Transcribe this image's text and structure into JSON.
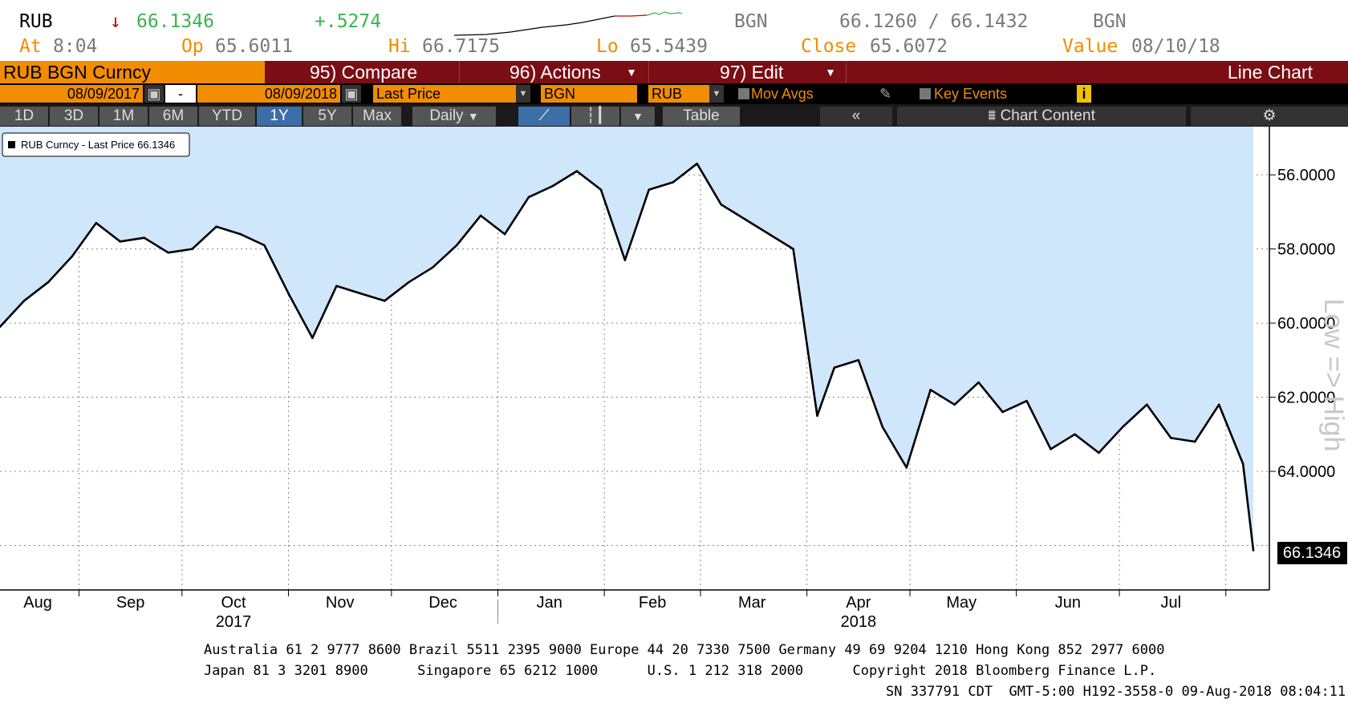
{
  "header": {
    "ticker": "RUB",
    "arrow": "↓",
    "last": "66.1346",
    "change": "+.5274",
    "src1": "BGN",
    "bid_ask": "66.1260 / 66.1432",
    "src2": "BGN",
    "at_label": "At",
    "at_value": "8:04",
    "op_label": "Op",
    "op_value": "65.6011",
    "hi_label": "Hi",
    "hi_value": "66.7175",
    "lo_label": "Lo",
    "lo_value": "65.5439",
    "close_label": "Close",
    "close_value": "65.6072",
    "value_label": "Value",
    "value_value": "08/10/18",
    "spark_colors": {
      "line": "#000000",
      "down": "#cc0000",
      "up": "#39b54a"
    }
  },
  "toolbar": {
    "security": "RUB BGN Curncy",
    "compare": "95) Compare",
    "actions": "96) Actions",
    "edit": "97) Edit",
    "chart_type": "Line Chart"
  },
  "fields": {
    "start_date": "08/09/2017",
    "dash": "-",
    "end_date": "08/09/2018",
    "price_field": "Last Price",
    "source": "BGN",
    "currency": "RUB",
    "mov_avgs": "Mov Avgs",
    "key_events": "Key Events"
  },
  "periods": {
    "items": [
      "1D",
      "3D",
      "1M",
      "6M",
      "YTD",
      "1Y",
      "5Y",
      "Max"
    ],
    "active": "1Y",
    "frequency": "Daily",
    "table": "Table",
    "chart_content": "Chart Content",
    "collapse": "«"
  },
  "footer": {
    "line1": "Australia 61 2 9777 8600 Brazil 5511 2395 9000 Europe 44 20 7330 7500 Germany 49 69 9204 1210 Hong Kong 852 2977 6000",
    "line2": "Japan 81 3 3201 8900      Singapore 65 6212 1000      U.S. 1 212 318 2000      Copyright 2018 Bloomberg Finance L.P.",
    "line3": "SN 337791 CDT  GMT-5:00 H192-3558-0 09-Aug-2018 08:04:11"
  },
  "colors": {
    "fill": "#cfe6fb",
    "brand_bar": "#7a0e14",
    "orange": "#f28c00",
    "active_tab": "#3c6ea8"
  },
  "chart_data": {
    "type": "area",
    "legend": "RUB Curncy - Last Price 66.1346",
    "legend_position": "top-left",
    "last_value_label": "66.1346",
    "axis_caption": "Low => High",
    "y_inverted": true,
    "ylim": [
      54.7,
      67.2
    ],
    "yticks": [
      56,
      58,
      60,
      62,
      64
    ],
    "ytick_labels": [
      "56.0000",
      "58.0000",
      "60.0000",
      "62.0000",
      "64.0000"
    ],
    "grid": true,
    "x_months": [
      "Aug",
      "Sep",
      "Oct",
      "Nov",
      "Dec",
      "Jan",
      "Feb",
      "Mar",
      "Apr",
      "May",
      "Jun",
      "Jul"
    ],
    "x_years": [
      "2017",
      "2018"
    ],
    "x": [
      "2017-08-09",
      "2017-08-16",
      "2017-08-23",
      "2017-08-30",
      "2017-09-06",
      "2017-09-13",
      "2017-09-20",
      "2017-09-27",
      "2017-10-04",
      "2017-10-11",
      "2017-10-18",
      "2017-10-25",
      "2017-11-01",
      "2017-11-08",
      "2017-11-15",
      "2017-11-22",
      "2017-11-29",
      "2017-12-06",
      "2017-12-13",
      "2017-12-20",
      "2017-12-27",
      "2018-01-03",
      "2018-01-10",
      "2018-01-17",
      "2018-01-24",
      "2018-01-31",
      "2018-02-07",
      "2018-02-14",
      "2018-02-21",
      "2018-02-28",
      "2018-03-07",
      "2018-03-14",
      "2018-03-21",
      "2018-03-28",
      "2018-04-04",
      "2018-04-09",
      "2018-04-16",
      "2018-04-23",
      "2018-04-30",
      "2018-05-07",
      "2018-05-14",
      "2018-05-21",
      "2018-05-28",
      "2018-06-04",
      "2018-06-11",
      "2018-06-18",
      "2018-06-25",
      "2018-07-02",
      "2018-07-09",
      "2018-07-16",
      "2018-07-23",
      "2018-07-30",
      "2018-08-06",
      "2018-08-09"
    ],
    "series": [
      {
        "name": "RUB Curncy - Last Price",
        "values": [
          60.1,
          59.4,
          58.9,
          58.2,
          57.3,
          57.8,
          57.7,
          58.1,
          58.0,
          57.4,
          57.6,
          57.9,
          59.2,
          60.4,
          59.0,
          59.2,
          59.4,
          58.9,
          58.5,
          57.9,
          57.1,
          57.6,
          56.6,
          56.3,
          55.9,
          56.4,
          58.3,
          56.4,
          56.2,
          55.7,
          56.8,
          57.2,
          57.6,
          58.0,
          62.5,
          61.2,
          61.0,
          62.8,
          63.9,
          61.8,
          62.2,
          61.6,
          62.4,
          62.1,
          63.4,
          63.0,
          63.5,
          62.8,
          62.2,
          63.1,
          63.2,
          62.2,
          63.8,
          66.13
        ]
      }
    ]
  }
}
